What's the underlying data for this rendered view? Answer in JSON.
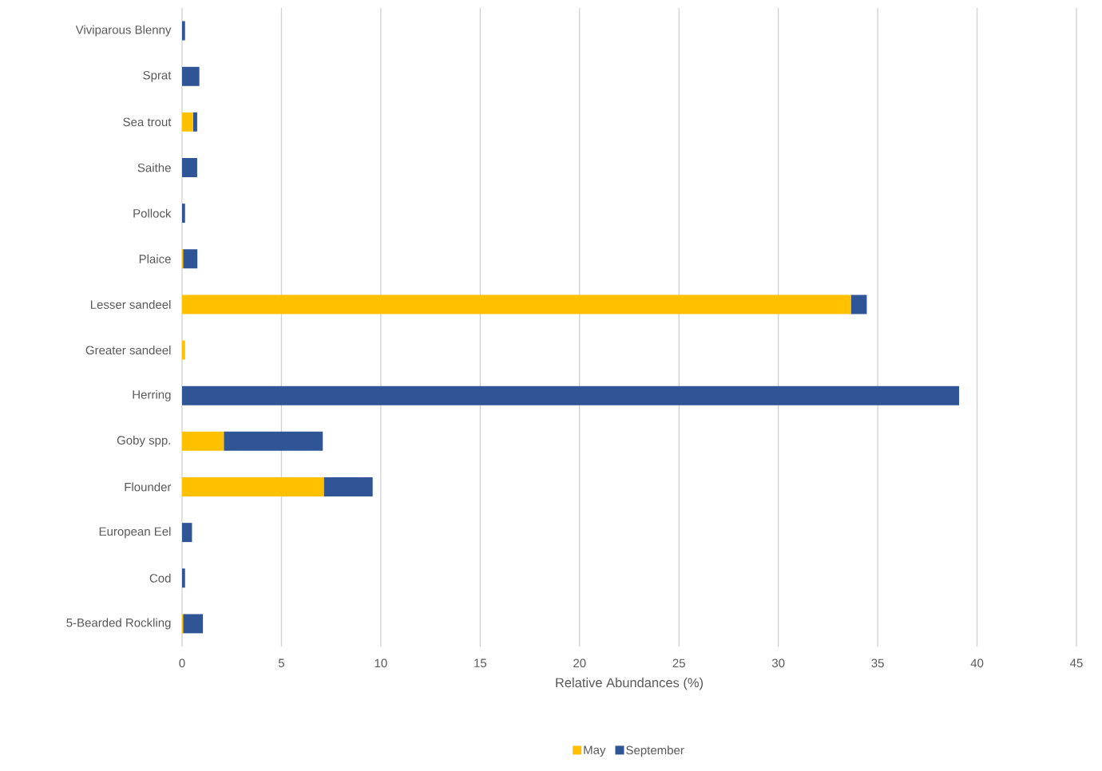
{
  "chart_data": {
    "type": "bar",
    "orientation": "horizontal",
    "stacked": true,
    "xlabel": "Relative Abundances (%)",
    "categories": [
      "Viviparous Blenny",
      "Sprat",
      "Sea trout",
      "Saithe",
      "Pollock",
      "Plaice",
      "Lesser sandeel",
      "Greater sandeel",
      "Herring",
      "Goby spp.",
      "Flounder",
      "European Eel",
      "Cod",
      "5-Bearded Rockling"
    ],
    "series": [
      {
        "name": "May",
        "color": "#ffc000",
        "values": [
          0,
          0,
          0.56,
          0,
          0,
          0.05,
          33.65,
          0.15,
          0,
          2.1,
          7.13,
          0,
          0,
          0.05
        ]
      },
      {
        "name": "September",
        "color": "#2f5597",
        "values": [
          0.15,
          0.87,
          0.2,
          0.76,
          0.15,
          0.72,
          0.8,
          0,
          39.1,
          4.98,
          2.46,
          0.5,
          0.15,
          1.0
        ]
      }
    ],
    "xlim": [
      0,
      45
    ],
    "xticks": [
      0,
      5,
      10,
      15,
      20,
      25,
      30,
      35,
      40,
      45
    ],
    "grid": "x",
    "legend": "bottom"
  }
}
